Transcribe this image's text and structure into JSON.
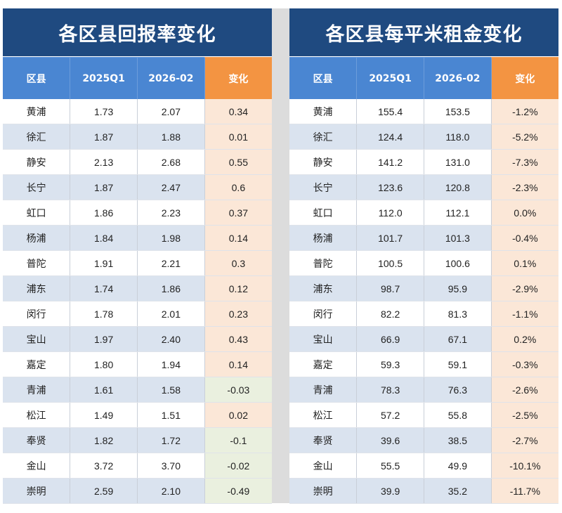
{
  "left_table": {
    "title": "各区县回报率变化",
    "headers": [
      "区县",
      "2025Q1",
      "2026-02",
      "变化"
    ],
    "rows": [
      {
        "district": "黄浦",
        "q1": "1.73",
        "feb": "2.07",
        "change": "0.34",
        "sign": "pos"
      },
      {
        "district": "徐汇",
        "q1": "1.87",
        "feb": "1.88",
        "change": "0.01",
        "sign": "pos"
      },
      {
        "district": "静安",
        "q1": "2.13",
        "feb": "2.68",
        "change": "0.55",
        "sign": "pos"
      },
      {
        "district": "长宁",
        "q1": "1.87",
        "feb": "2.47",
        "change": "0.6",
        "sign": "pos"
      },
      {
        "district": "虹口",
        "q1": "1.86",
        "feb": "2.23",
        "change": "0.37",
        "sign": "pos"
      },
      {
        "district": "杨浦",
        "q1": "1.84",
        "feb": "1.98",
        "change": "0.14",
        "sign": "pos"
      },
      {
        "district": "普陀",
        "q1": "1.91",
        "feb": "2.21",
        "change": "0.3",
        "sign": "pos"
      },
      {
        "district": "浦东",
        "q1": "1.74",
        "feb": "1.86",
        "change": "0.12",
        "sign": "pos"
      },
      {
        "district": "闵行",
        "q1": "1.78",
        "feb": "2.01",
        "change": "0.23",
        "sign": "pos"
      },
      {
        "district": "宝山",
        "q1": "1.97",
        "feb": "2.40",
        "change": "0.43",
        "sign": "pos"
      },
      {
        "district": "嘉定",
        "q1": "1.80",
        "feb": "1.94",
        "change": "0.14",
        "sign": "pos"
      },
      {
        "district": "青浦",
        "q1": "1.61",
        "feb": "1.58",
        "change": "-0.03",
        "sign": "neg"
      },
      {
        "district": "松江",
        "q1": "1.49",
        "feb": "1.51",
        "change": "0.02",
        "sign": "pos"
      },
      {
        "district": "奉贤",
        "q1": "1.82",
        "feb": "1.72",
        "change": "-0.1",
        "sign": "neg"
      },
      {
        "district": "金山",
        "q1": "3.72",
        "feb": "3.70",
        "change": "-0.02",
        "sign": "neg"
      },
      {
        "district": "崇明",
        "q1": "2.59",
        "feb": "2.10",
        "change": "-0.49",
        "sign": "neg"
      }
    ]
  },
  "right_table": {
    "title": "各区县每平米租金变化",
    "headers": [
      "区县",
      "2025Q1",
      "2026-02",
      "变化"
    ],
    "rows": [
      {
        "district": "黄浦",
        "q1": "155.4",
        "feb": "153.5",
        "change": "-1.2%"
      },
      {
        "district": "徐汇",
        "q1": "124.4",
        "feb": "118.0",
        "change": "-5.2%"
      },
      {
        "district": "静安",
        "q1": "141.2",
        "feb": "131.0",
        "change": "-7.3%"
      },
      {
        "district": "长宁",
        "q1": "123.6",
        "feb": "120.8",
        "change": "-2.3%"
      },
      {
        "district": "虹口",
        "q1": "112.0",
        "feb": "112.1",
        "change": "0.0%"
      },
      {
        "district": "杨浦",
        "q1": "101.7",
        "feb": "101.3",
        "change": "-0.4%"
      },
      {
        "district": "普陀",
        "q1": "100.5",
        "feb": "100.6",
        "change": "0.1%"
      },
      {
        "district": "浦东",
        "q1": "98.7",
        "feb": "95.9",
        "change": "-2.9%"
      },
      {
        "district": "闵行",
        "q1": "82.2",
        "feb": "81.3",
        "change": "-1.1%"
      },
      {
        "district": "宝山",
        "q1": "66.9",
        "feb": "67.1",
        "change": "0.2%"
      },
      {
        "district": "嘉定",
        "q1": "59.3",
        "feb": "59.1",
        "change": "-0.3%"
      },
      {
        "district": "青浦",
        "q1": "78.3",
        "feb": "76.3",
        "change": "-2.6%"
      },
      {
        "district": "松江",
        "q1": "57.2",
        "feb": "55.8",
        "change": "-2.5%"
      },
      {
        "district": "奉贤",
        "q1": "39.6",
        "feb": "38.5",
        "change": "-2.7%"
      },
      {
        "district": "金山",
        "q1": "55.5",
        "feb": "49.9",
        "change": "-10.1%"
      },
      {
        "district": "崇明",
        "q1": "39.9",
        "feb": "35.2",
        "change": "-11.7%"
      }
    ]
  },
  "colors": {
    "title_bg": "#1f4a80",
    "header_bg": "#4a86d2",
    "change_header_bg": "#f39442",
    "row_alt_bg": "#dae3ef",
    "positive_change_bg": "#fbe7d7",
    "negative_change_bg": "#eaf0df",
    "divider": "#dcdcdc"
  }
}
